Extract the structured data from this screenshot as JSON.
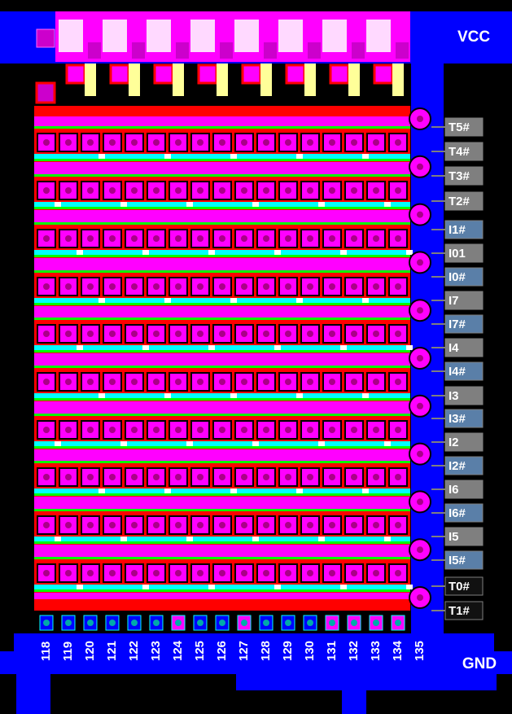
{
  "supply": {
    "top": "VCC",
    "bottom": "GND"
  },
  "pins": [
    {
      "label": "T5#",
      "color": "#7f7f7f"
    },
    {
      "label": "T4#",
      "color": "#7f7f7f"
    },
    {
      "label": "T3#",
      "color": "#7f7f7f"
    },
    {
      "label": "T2#",
      "color": "#7f7f7f"
    },
    {
      "label": "I1#",
      "color": "#5a7fa8"
    },
    {
      "label": "I01",
      "color": "#7f7f7f"
    },
    {
      "label": "I0#",
      "color": "#5a7fa8"
    },
    {
      "label": "I7",
      "color": "#7f7f7f"
    },
    {
      "label": "I7#",
      "color": "#5a7fa8"
    },
    {
      "label": "I4",
      "color": "#7f7f7f"
    },
    {
      "label": "I4#",
      "color": "#5a7fa8"
    },
    {
      "label": "I3",
      "color": "#7f7f7f"
    },
    {
      "label": "I3#",
      "color": "#5a7fa8"
    },
    {
      "label": "I2",
      "color": "#7f7f7f"
    },
    {
      "label": "I2#",
      "color": "#5a7fa8"
    },
    {
      "label": "I6",
      "color": "#7f7f7f"
    },
    {
      "label": "I6#",
      "color": "#5a7fa8"
    },
    {
      "label": "I5",
      "color": "#7f7f7f"
    },
    {
      "label": "I5#",
      "color": "#5a7fa8"
    },
    {
      "label": "T0#",
      "color": "#111111"
    },
    {
      "label": "T1#",
      "color": "#111111"
    }
  ],
  "columns": [
    "118",
    "119",
    "120",
    "121",
    "122",
    "123",
    "124",
    "125",
    "126",
    "127",
    "128",
    "129",
    "130",
    "131",
    "132",
    "133",
    "134",
    "135"
  ]
}
